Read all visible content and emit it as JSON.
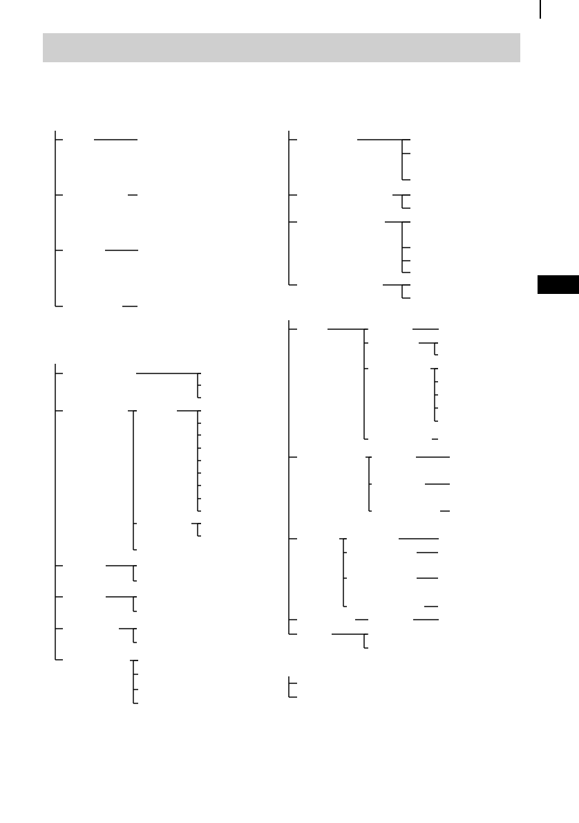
{
  "colors": {
    "header_band": "#cfcfcf",
    "tab_marker": "#000000",
    "lines": "#000000"
  }
}
